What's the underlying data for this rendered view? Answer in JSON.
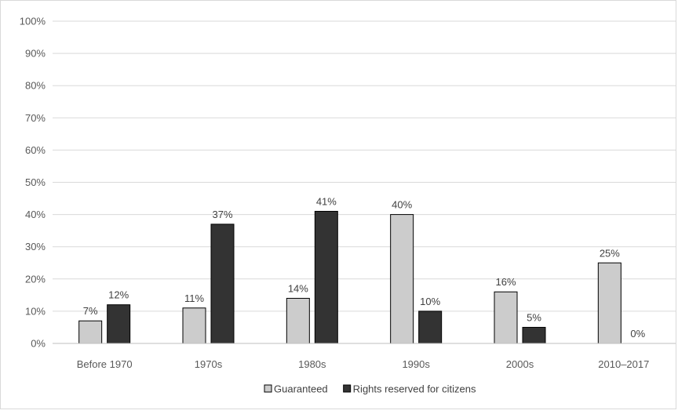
{
  "chart_data": {
    "type": "bar",
    "title": "",
    "xlabel": "",
    "ylabel": "",
    "categories": [
      "Before 1970",
      "1970s",
      "1980s",
      "1990s",
      "2000s",
      "2010–2017"
    ],
    "series": [
      {
        "name": "Guaranteed",
        "color": "#cccccc",
        "values": [
          7,
          11,
          14,
          40,
          16,
          25
        ],
        "labels": [
          "7%",
          "11%",
          "14%",
          "40%",
          "16%",
          "25%"
        ]
      },
      {
        "name": "Rights reserved for citizens",
        "color": "#333333",
        "values": [
          12,
          37,
          41,
          10,
          5,
          0
        ],
        "labels": [
          "12%",
          "37%",
          "41%",
          "10%",
          "5%",
          "0%"
        ]
      }
    ],
    "ylim": [
      0,
      100
    ],
    "yticks": [
      "0%",
      "10%",
      "20%",
      "30%",
      "40%",
      "50%",
      "60%",
      "70%",
      "80%",
      "90%",
      "100%"
    ],
    "grid": true,
    "legend": "bottom"
  }
}
